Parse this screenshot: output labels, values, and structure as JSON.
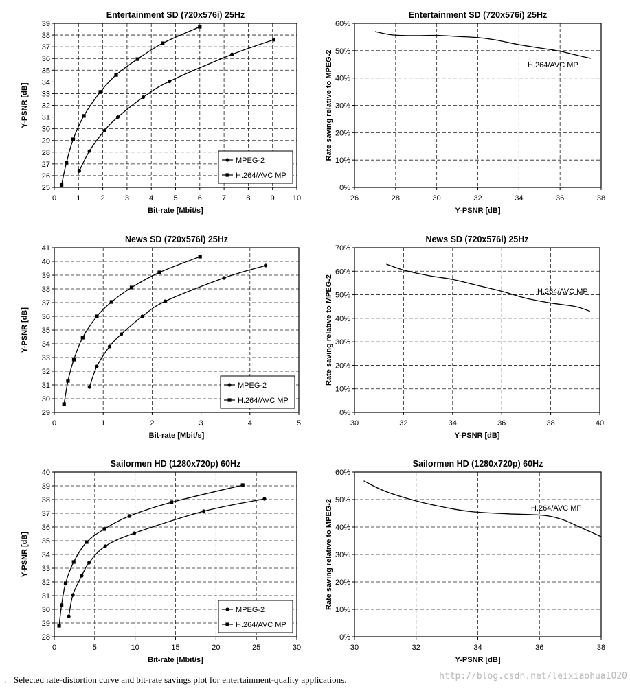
{
  "caption": {
    "lead": ".",
    "text": "Selected rate-distortion curve and bit-rate savings plot for entertainment-quality applications."
  },
  "watermark": "http://blog.csdn.net/leixiaohua1020",
  "chart_data": [
    {
      "type": "line",
      "title": "Entertainment SD (720x576i) 25Hz",
      "xlabel": "Bit-rate [Mbit/s]",
      "ylabel": "Y-PSNR [dB]",
      "xlim": [
        0,
        10
      ],
      "xticks": [
        0,
        1,
        2,
        3,
        4,
        5,
        6,
        7,
        8,
        9,
        10
      ],
      "ylim": [
        25,
        39
      ],
      "yticks": [
        25,
        26,
        27,
        28,
        29,
        30,
        31,
        32,
        33,
        34,
        35,
        36,
        37,
        38,
        39
      ],
      "grid": true,
      "legend": "bottom-right",
      "series": [
        {
          "name": "MPEG-2",
          "marker": "circle",
          "x": [
            1.03,
            1.45,
            2.07,
            2.62,
            3.67,
            4.75,
            7.33,
            9.05
          ],
          "y": [
            26.4,
            28.1,
            29.85,
            31.0,
            32.7,
            34.05,
            36.35,
            37.6
          ]
        },
        {
          "name": "H.264/AVC MP",
          "marker": "square",
          "x": [
            0.3,
            0.5,
            0.78,
            1.22,
            1.9,
            2.55,
            3.43,
            4.47,
            6.0
          ],
          "y": [
            25.2,
            27.1,
            29.1,
            31.1,
            33.15,
            34.6,
            35.95,
            37.3,
            38.7
          ]
        }
      ]
    },
    {
      "type": "line",
      "title": "Entertainment SD (720x576i) 25Hz",
      "xlabel": "Y-PSNR [dB]",
      "ylabel": "Rate saving relative to MPEG-2",
      "xlim": [
        26,
        38
      ],
      "xticks": [
        26,
        28,
        30,
        32,
        34,
        36,
        38
      ],
      "ylim": [
        0,
        60
      ],
      "yticks": [
        0,
        10,
        20,
        30,
        40,
        50,
        60
      ],
      "yformat": "percent",
      "grid": true,
      "annotation": "H.264/AVC MP",
      "series": [
        {
          "name": "H.264/AVC MP",
          "x": [
            27.0,
            27.8,
            28.8,
            30.0,
            31.0,
            32.0,
            32.8,
            34.0,
            35.0,
            36.0,
            37.0,
            37.5
          ],
          "y": [
            57.0,
            55.8,
            55.5,
            55.6,
            55.2,
            54.8,
            54.0,
            52.2,
            51.0,
            49.8,
            48.0,
            47.2
          ]
        }
      ]
    },
    {
      "type": "line",
      "title": "News SD (720x576i) 25Hz",
      "xlabel": "Bit-rate [Mbit/s]",
      "ylabel": "Y-PSNR [dB]",
      "xlim": [
        0,
        5
      ],
      "xticks": [
        0,
        1,
        2,
        3,
        4,
        5
      ],
      "ylim": [
        29,
        41
      ],
      "yticks": [
        29,
        30,
        31,
        32,
        33,
        34,
        35,
        36,
        37,
        38,
        39,
        40,
        41
      ],
      "grid": true,
      "legend": "bottom-right",
      "series": [
        {
          "name": "MPEG-2",
          "marker": "circle",
          "x": [
            0.72,
            0.87,
            1.13,
            1.37,
            1.8,
            2.27,
            3.47,
            4.32
          ],
          "y": [
            30.85,
            32.35,
            33.8,
            34.7,
            36.0,
            37.1,
            38.8,
            39.7
          ]
        },
        {
          "name": "H.264/AVC MP",
          "marker": "square",
          "x": [
            0.2,
            0.28,
            0.4,
            0.58,
            0.87,
            1.17,
            1.58,
            2.15,
            2.98
          ],
          "y": [
            29.6,
            31.3,
            32.85,
            34.45,
            36.0,
            37.05,
            38.1,
            39.2,
            40.35
          ]
        }
      ]
    },
    {
      "type": "line",
      "title": "News SD (720x576i) 25Hz",
      "xlabel": "Y-PSNR [dB]",
      "ylabel": "Rate saving relative to MPEG-2",
      "xlim": [
        30,
        40
      ],
      "xticks": [
        30,
        32,
        34,
        36,
        38,
        40
      ],
      "ylim": [
        0,
        70
      ],
      "yticks": [
        0,
        10,
        20,
        30,
        40,
        50,
        60,
        70
      ],
      "yformat": "percent",
      "grid": true,
      "annotation": "H.264/AVC MP",
      "series": [
        {
          "name": "H.264/AVC MP",
          "x": [
            31.3,
            32.0,
            33.0,
            34.0,
            35.0,
            36.0,
            37.0,
            38.0,
            39.0,
            39.6
          ],
          "y": [
            63.0,
            60.5,
            58.2,
            56.5,
            54.0,
            51.5,
            48.5,
            46.5,
            45.0,
            43.0
          ]
        }
      ]
    },
    {
      "type": "line",
      "title": "Sailormen HD (1280x720p) 60Hz",
      "xlabel": "Bit-rate [Mbit/s]",
      "ylabel": "Y-PSNR [dB]",
      "xlim": [
        0,
        30
      ],
      "xticks": [
        0,
        5,
        10,
        15,
        20,
        25,
        30
      ],
      "ylim": [
        28,
        40
      ],
      "yticks": [
        28,
        29,
        30,
        31,
        32,
        33,
        34,
        35,
        36,
        37,
        38,
        39,
        40
      ],
      "grid": true,
      "legend": "bottom-right",
      "series": [
        {
          "name": "MPEG-2",
          "marker": "circle",
          "x": [
            1.8,
            2.3,
            3.4,
            4.3,
            6.3,
            9.9,
            18.5,
            26.0
          ],
          "y": [
            29.5,
            31.05,
            32.45,
            33.4,
            34.6,
            35.55,
            37.15,
            38.05
          ]
        },
        {
          "name": "H.264/AVC MP",
          "marker": "square",
          "x": [
            0.6,
            0.9,
            1.4,
            2.4,
            4.0,
            6.2,
            9.3,
            14.5,
            23.3
          ],
          "y": [
            28.8,
            30.3,
            31.9,
            33.45,
            34.9,
            35.85,
            36.8,
            37.8,
            39.05
          ]
        }
      ]
    },
    {
      "type": "line",
      "title": "Sailormen HD (1280x720p) 60Hz",
      "xlabel": "Y-PSNR [dB]",
      "ylabel": "Rate saving relative to MPEG-2",
      "xlim": [
        30,
        38
      ],
      "xticks": [
        30,
        32,
        34,
        36,
        38
      ],
      "ylim": [
        0,
        60
      ],
      "yticks": [
        0,
        10,
        20,
        30,
        40,
        50,
        60
      ],
      "yformat": "percent",
      "grid": true,
      "annotation": "H.264/AVC MP",
      "series": [
        {
          "name": "H.264/AVC MP",
          "x": [
            30.3,
            31.0,
            32.0,
            33.0,
            33.8,
            35.0,
            35.8,
            36.3,
            36.8,
            37.3,
            38.0
          ],
          "y": [
            56.8,
            53.0,
            49.5,
            47.0,
            45.6,
            44.8,
            44.5,
            44.0,
            42.5,
            40.0,
            36.5
          ]
        }
      ]
    }
  ]
}
